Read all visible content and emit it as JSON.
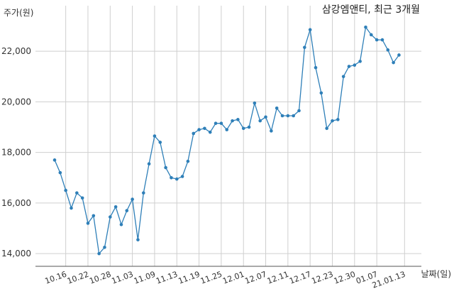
{
  "chart_data": {
    "type": "line",
    "title": "삼강엠앤티, 최근 3개월",
    "ylabel": "주가(원)",
    "xlabel": "날짜(일)",
    "ylim": [
      13500,
      23800
    ],
    "yticks": [
      14000,
      16000,
      18000,
      20000,
      22000
    ],
    "ytick_labels": [
      "14,000",
      "16,000",
      "18,000",
      "20,000",
      "22,000"
    ],
    "xtick_labels": [
      "10.16",
      "10.22",
      "10.28",
      "11.03",
      "11.09",
      "11.13",
      "11.19",
      "11.25",
      "12.01",
      "12.07",
      "12.11",
      "12.17",
      "12.23",
      "12.30",
      "01.07",
      "21.01.13"
    ],
    "xtick_index": [
      2,
      6,
      10,
      14,
      18,
      22,
      26,
      30,
      34,
      38,
      42,
      46,
      50,
      54,
      58,
      63
    ],
    "grid": true,
    "series": [
      {
        "values": [
          17700,
          17200,
          16500,
          15800,
          16400,
          16200,
          15200,
          15500,
          14000,
          14250,
          15450,
          15850,
          15150,
          15700,
          16150,
          14550,
          16400,
          17550,
          18650,
          18400,
          17400,
          17000,
          16950,
          17050,
          17650,
          18750,
          18900,
          18950,
          18800,
          19150,
          19150,
          18900,
          19250,
          19300,
          18950,
          19000,
          19950,
          19250,
          19400,
          18850,
          19750,
          19450,
          19450,
          19450,
          19650,
          22150,
          22850,
          21350,
          20350,
          18950,
          19250,
          19300,
          21000,
          21400,
          21450,
          21600,
          22950,
          22650,
          22450,
          22450,
          22050,
          21550,
          21850
        ],
        "color": "#2e7fb8"
      }
    ]
  }
}
